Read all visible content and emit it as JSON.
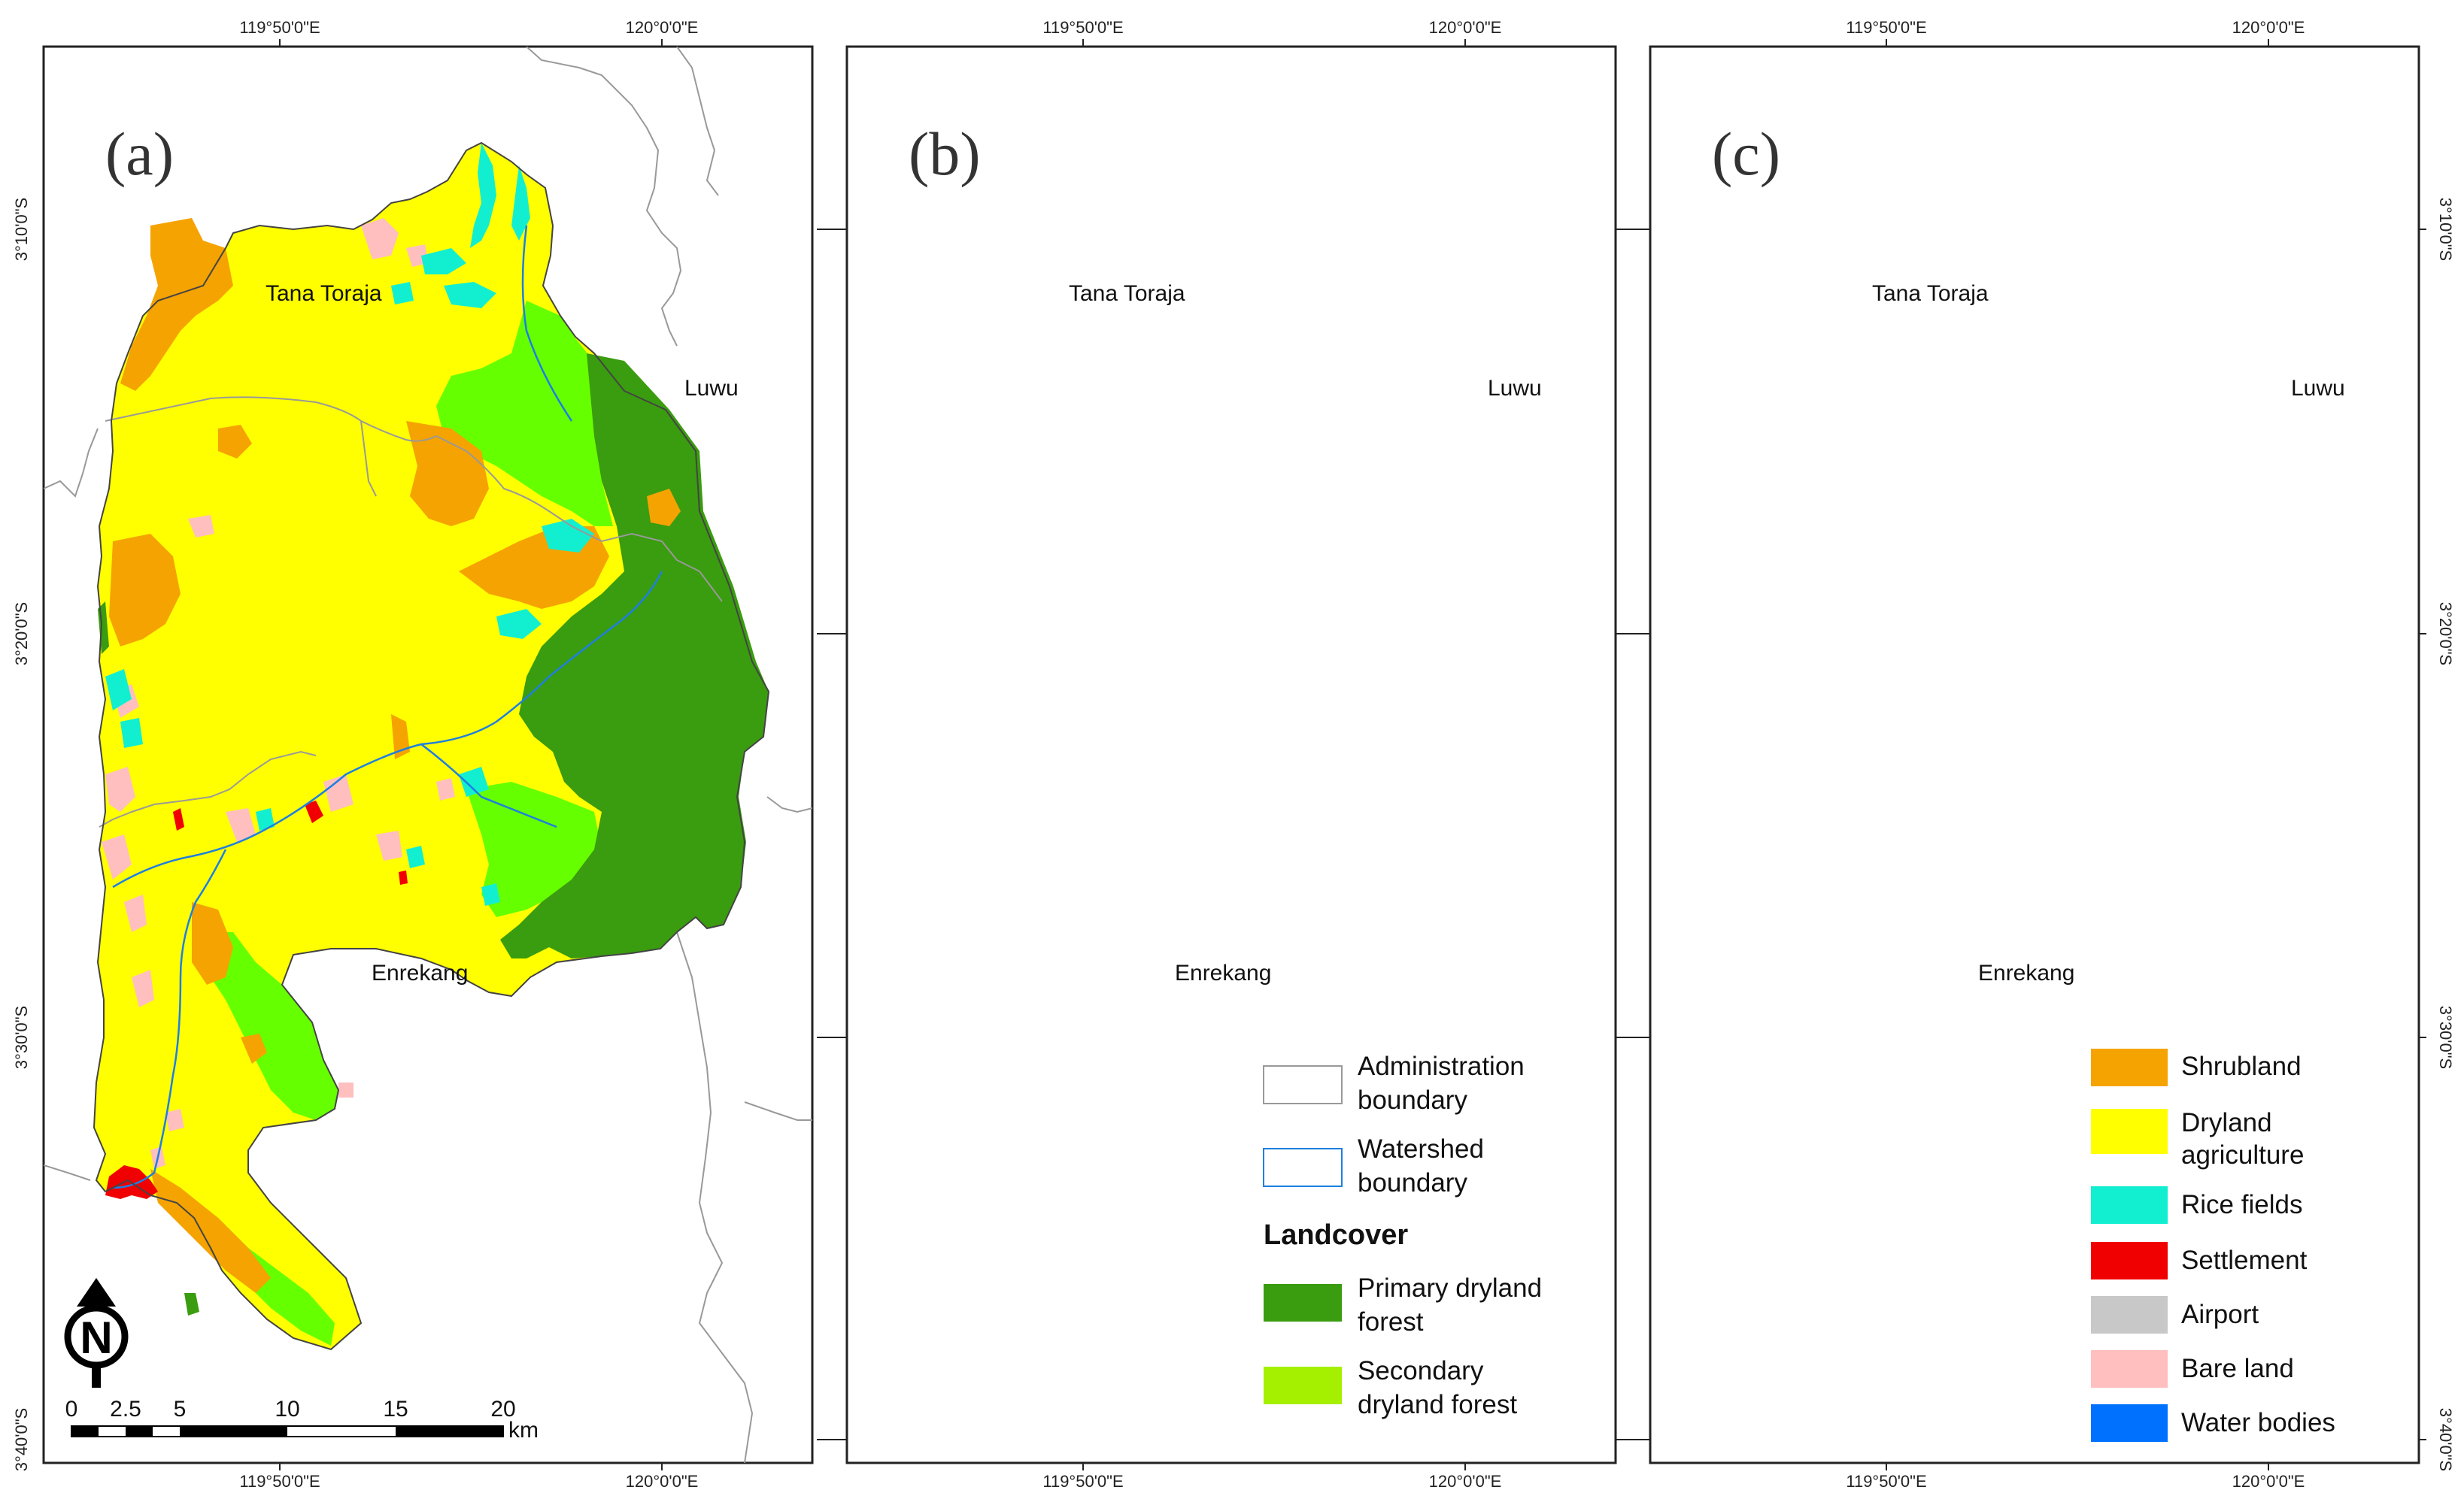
{
  "panels": [
    {
      "label": "(a)",
      "places": {
        "tana_toraja": "Tana Toraja",
        "luwu": "Luwu",
        "enrekang": "Enrekang"
      }
    },
    {
      "label": "(b)",
      "places": {
        "tana_toraja": "Tana Toraja",
        "luwu": "Luwu",
        "enrekang": "Enrekang"
      }
    },
    {
      "label": "(c)",
      "places": {
        "tana_toraja": "Tana Toraja",
        "luwu": "Luwu",
        "enrekang": "Enrekang"
      }
    }
  ],
  "coordinates": {
    "lon_left": "119°50'0\"E",
    "lon_right": "120°0'0\"E",
    "lat": [
      "3°10'0\"S",
      "3°20'0\"S",
      "3°30'0\"S",
      "3°40'0\"S"
    ]
  },
  "north_arrow": {
    "letter": "N"
  },
  "scale_bar": {
    "ticks": [
      "0",
      "2.5",
      "5",
      "10",
      "15",
      "20"
    ],
    "unit": "km"
  },
  "legend_b": {
    "admin_line1": "Administration",
    "admin_line2": "boundary",
    "watershed_line1": "Watershed",
    "watershed_line2": "boundary",
    "landcover_heading": "Landcover",
    "primary_line1": "Primary dryland",
    "primary_line2": "forest",
    "secondary_line1": "Secondary",
    "secondary_line2": "dryland forest"
  },
  "legend_c": {
    "shrubland": "Shrubland",
    "dryland_line1": "Dryland",
    "dryland_line2": "agriculture",
    "rice": "Rice fields",
    "settlement": "Settlement",
    "airport": "Airport",
    "bare": "Bare land",
    "water": "Water bodies"
  },
  "colors": {
    "primary_forest": "#3A9C0F",
    "secondary_forest": "#66FF00",
    "secondary_forest_c": "#A5F000",
    "shrubland": "#F5A300",
    "dryland_agriculture": "#FFFF00",
    "rice_fields": "#12EFD0",
    "settlement": "#F00000",
    "airport": "#C8C8C8",
    "bare_land": "#FFBFBF",
    "water_bodies": "#0070FF"
  }
}
